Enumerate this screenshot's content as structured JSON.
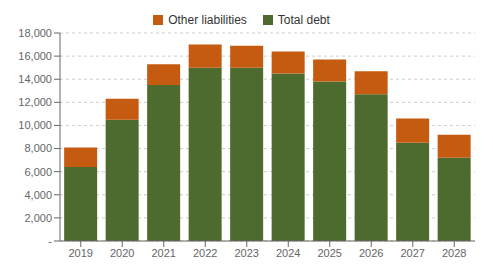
{
  "chart_data": {
    "type": "bar",
    "stacked": true,
    "grid": true,
    "legend": "top",
    "categories": [
      "2019",
      "2020",
      "2021",
      "2022",
      "2023",
      "2024",
      "2025",
      "2026",
      "2027",
      "2028"
    ],
    "series": [
      {
        "name": "Total debt",
        "color": "#4d6b2e",
        "values": [
          6400,
          10500,
          13500,
          15000,
          15000,
          14500,
          13800,
          12700,
          8500,
          7200
        ]
      },
      {
        "name": "Other liabilities",
        "color": "#c55a11",
        "values": [
          1700,
          1800,
          1800,
          2000,
          1900,
          1900,
          1900,
          2000,
          2100,
          2000
        ]
      }
    ],
    "ylim": [
      0,
      18000
    ],
    "yticks": [
      {
        "value": 0,
        "label": "-"
      },
      {
        "value": 2000,
        "label": "2,000"
      },
      {
        "value": 4000,
        "label": "4,000"
      },
      {
        "value": 6000,
        "label": "6,000"
      },
      {
        "value": 8000,
        "label": "8,000"
      },
      {
        "value": 10000,
        "label": "10,000"
      },
      {
        "value": 12000,
        "label": "12,000"
      },
      {
        "value": 14000,
        "label": "14,000"
      },
      {
        "value": 16000,
        "label": "16,000"
      },
      {
        "value": 18000,
        "label": "18,000"
      }
    ]
  }
}
